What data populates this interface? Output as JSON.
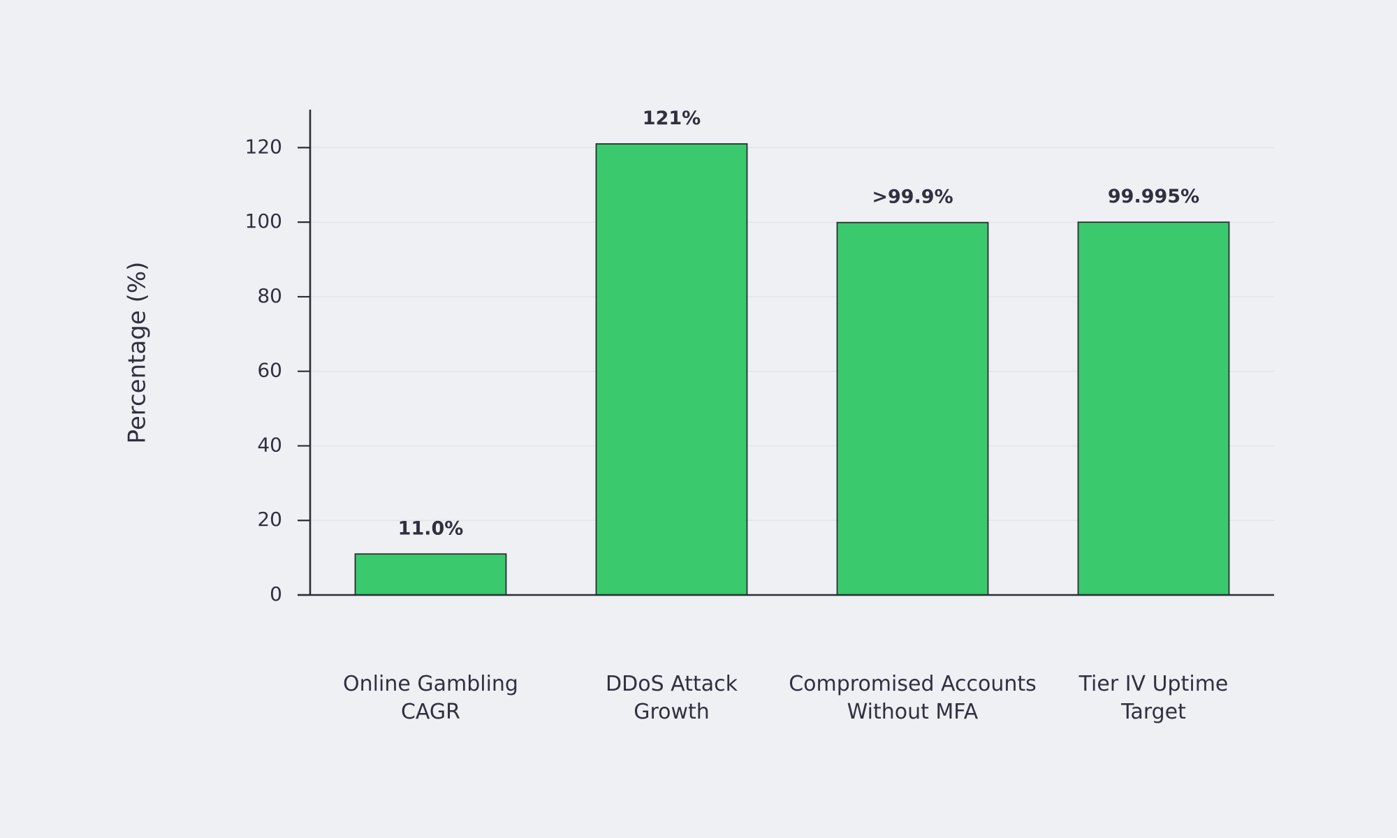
{
  "chart_data": {
    "type": "bar",
    "categories": [
      "Online Gambling CAGR",
      "DDoS Attack Growth",
      "Compromised Accounts Without MFA",
      "Tier IV Uptime Target"
    ],
    "category_label_lines": [
      [
        "Online Gambling",
        "CAGR"
      ],
      [
        "DDoS Attack",
        "Growth"
      ],
      [
        "Compromised Accounts",
        "Without MFA"
      ],
      [
        "Tier IV Uptime",
        "Target"
      ]
    ],
    "values": [
      11.0,
      121,
      99.9,
      99.995
    ],
    "data_labels": [
      "11.0%",
      "121%",
      ">99.9%",
      "99.995%"
    ],
    "ylabel": "Percentage (%)",
    "xlabel": "",
    "title": "",
    "ylim": [
      0,
      130
    ],
    "yticks": [
      0,
      20,
      40,
      60,
      80,
      100,
      120
    ],
    "grid": true,
    "bar_color": "#3bc96d",
    "edge_color": "#2b2c36",
    "background_color": "#eff0f4",
    "text_color": "#2f3140"
  }
}
